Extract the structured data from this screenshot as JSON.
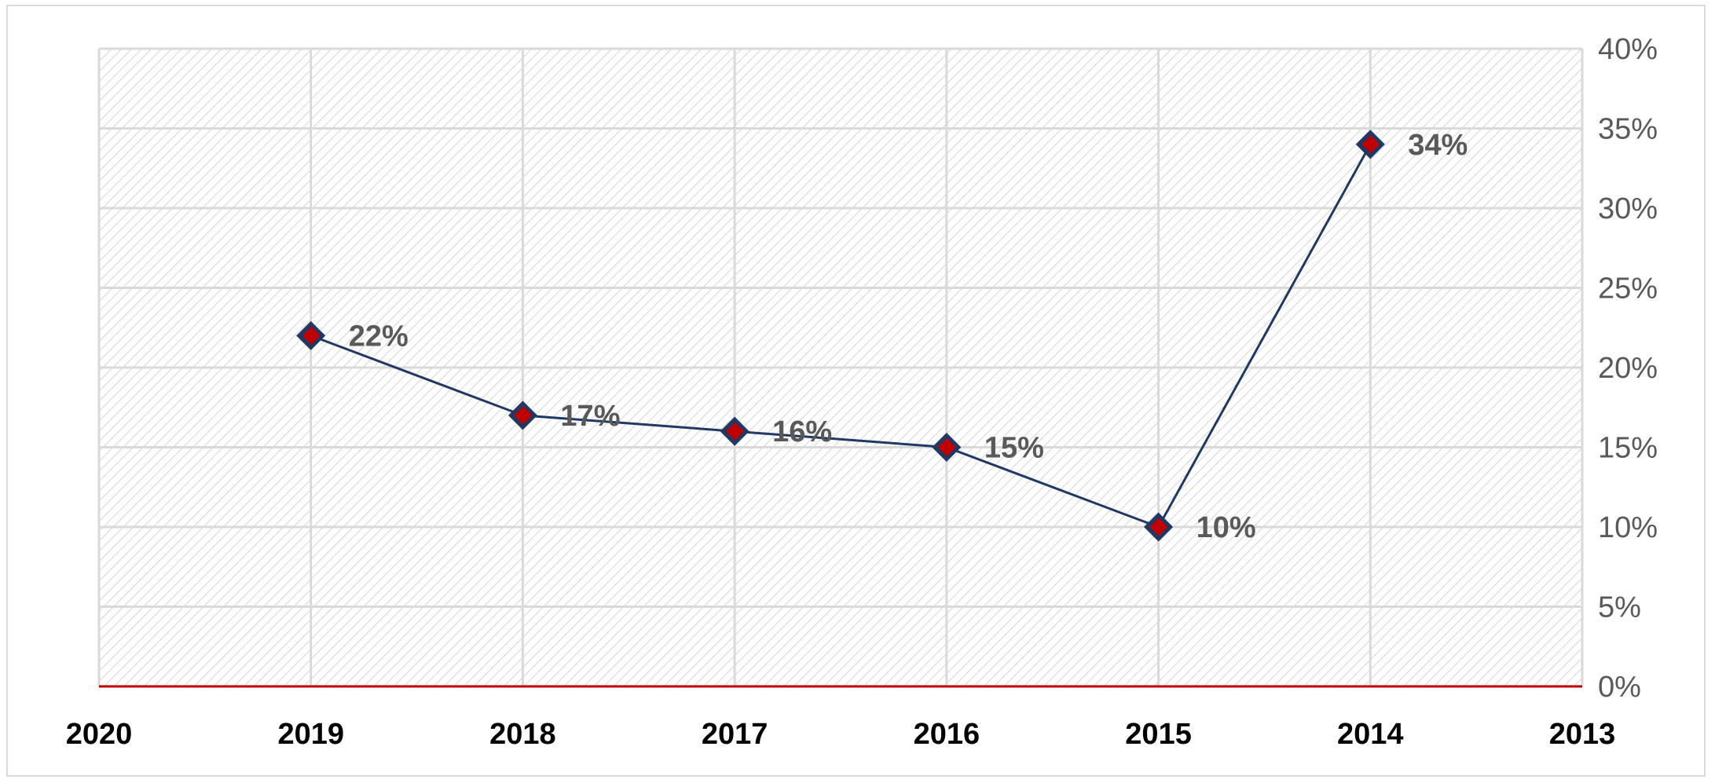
{
  "chart_data": {
    "type": "line",
    "x": [
      2019,
      2018,
      2017,
      2016,
      2015,
      2014
    ],
    "x_ticks": [
      "2020",
      "2019",
      "2018",
      "2017",
      "2016",
      "2015",
      "2014",
      "2013"
    ],
    "xlim": [
      2020,
      2013
    ],
    "x_reversed": true,
    "series": [
      {
        "values": [
          22,
          17,
          16,
          15,
          10,
          34
        ],
        "data_labels": [
          "22%",
          "17%",
          "16%",
          "15%",
          "10%",
          "34%"
        ]
      }
    ],
    "ylim": [
      0,
      40
    ],
    "y_ticks": [
      "0%",
      "5%",
      "10%",
      "15%",
      "20%",
      "25%",
      "30%",
      "35%",
      "40%"
    ],
    "y_axis_side": "right",
    "title": "",
    "xlabel": "",
    "ylabel": "",
    "grid": true,
    "plot_background": "hatched",
    "colors": {
      "line": "#1f3864",
      "marker_fill": "#c00000",
      "marker_edge": "#1f3864",
      "baseline": "#c00000",
      "grid": "#d9d9d9"
    }
  }
}
